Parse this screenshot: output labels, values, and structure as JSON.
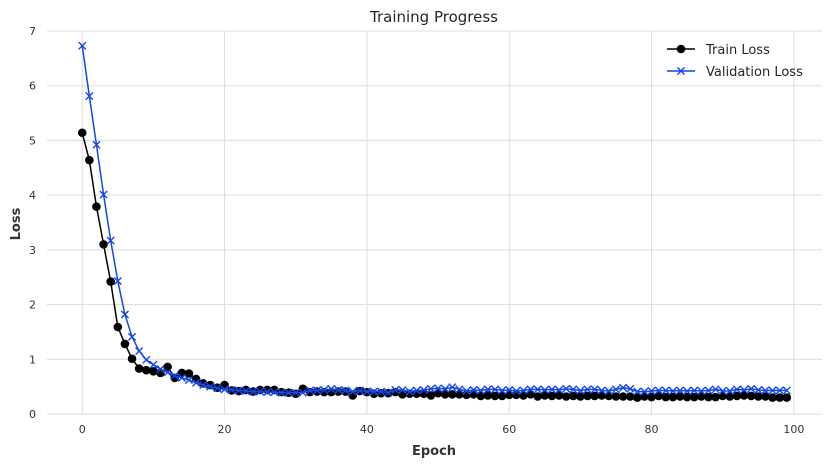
{
  "chart_data": {
    "type": "line",
    "title": "Training Progress",
    "xlabel": "Epoch",
    "ylabel": "Loss",
    "xlim": [
      -4.95,
      103.95
    ],
    "ylim": [
      0,
      7
    ],
    "xticks": [
      0,
      20,
      40,
      60,
      80,
      100
    ],
    "yticks": [
      0,
      1,
      2,
      3,
      4,
      5,
      6,
      7
    ],
    "grid": true,
    "legend_position": "top-right",
    "series": [
      {
        "name": "Train Loss",
        "color": "#000000",
        "marker": "circle",
        "x": [
          0,
          1,
          2,
          3,
          4,
          5,
          6,
          7,
          8,
          9,
          10,
          11,
          12,
          13,
          14,
          15,
          16,
          17,
          18,
          19,
          20,
          21,
          22,
          23,
          24,
          25,
          26,
          27,
          28,
          29,
          30,
          31,
          32,
          33,
          34,
          35,
          36,
          37,
          38,
          39,
          40,
          41,
          42,
          43,
          44,
          45,
          46,
          47,
          48,
          49,
          50,
          51,
          52,
          53,
          54,
          55,
          56,
          57,
          58,
          59,
          60,
          61,
          62,
          63,
          64,
          65,
          66,
          67,
          68,
          69,
          70,
          71,
          72,
          73,
          74,
          75,
          76,
          77,
          78,
          79,
          80,
          81,
          82,
          83,
          84,
          85,
          86,
          87,
          88,
          89,
          90,
          91,
          92,
          93,
          94,
          95,
          96,
          97,
          98,
          99
        ],
        "values": [
          5.14,
          4.64,
          3.79,
          3.1,
          2.42,
          1.59,
          1.28,
          1.01,
          0.83,
          0.8,
          0.78,
          0.75,
          0.86,
          0.66,
          0.75,
          0.74,
          0.64,
          0.56,
          0.53,
          0.48,
          0.53,
          0.43,
          0.42,
          0.44,
          0.41,
          0.44,
          0.44,
          0.44,
          0.4,
          0.39,
          0.37,
          0.46,
          0.4,
          0.41,
          0.4,
          0.4,
          0.41,
          0.41,
          0.34,
          0.42,
          0.4,
          0.37,
          0.38,
          0.38,
          0.4,
          0.36,
          0.37,
          0.37,
          0.37,
          0.34,
          0.38,
          0.36,
          0.36,
          0.36,
          0.35,
          0.36,
          0.33,
          0.34,
          0.33,
          0.33,
          0.35,
          0.35,
          0.34,
          0.36,
          0.32,
          0.34,
          0.33,
          0.34,
          0.32,
          0.33,
          0.32,
          0.33,
          0.33,
          0.34,
          0.33,
          0.32,
          0.32,
          0.32,
          0.3,
          0.32,
          0.31,
          0.33,
          0.31,
          0.31,
          0.32,
          0.31,
          0.31,
          0.32,
          0.31,
          0.31,
          0.33,
          0.32,
          0.33,
          0.34,
          0.33,
          0.32,
          0.32,
          0.3,
          0.3,
          0.3
        ]
      },
      {
        "name": "Validation Loss",
        "color": "#1447e6",
        "marker": "x",
        "x": [
          0,
          1,
          2,
          3,
          4,
          5,
          6,
          7,
          8,
          9,
          10,
          11,
          12,
          13,
          14,
          15,
          16,
          17,
          18,
          19,
          20,
          21,
          22,
          23,
          24,
          25,
          26,
          27,
          28,
          29,
          30,
          31,
          32,
          33,
          34,
          35,
          36,
          37,
          38,
          39,
          40,
          41,
          42,
          43,
          44,
          45,
          46,
          47,
          48,
          49,
          50,
          51,
          52,
          53,
          54,
          55,
          56,
          57,
          58,
          59,
          60,
          61,
          62,
          63,
          64,
          65,
          66,
          67,
          68,
          69,
          70,
          71,
          72,
          73,
          74,
          75,
          76,
          77,
          78,
          79,
          80,
          81,
          82,
          83,
          84,
          85,
          86,
          87,
          88,
          89,
          90,
          91,
          92,
          93,
          94,
          95,
          96,
          97,
          98,
          99
        ],
        "values": [
          6.73,
          5.81,
          4.92,
          4.01,
          3.17,
          2.43,
          1.82,
          1.41,
          1.15,
          0.99,
          0.9,
          0.82,
          0.76,
          0.7,
          0.66,
          0.62,
          0.57,
          0.53,
          0.5,
          0.47,
          0.45,
          0.44,
          0.43,
          0.42,
          0.41,
          0.41,
          0.4,
          0.4,
          0.39,
          0.39,
          0.39,
          0.39,
          0.43,
          0.43,
          0.44,
          0.46,
          0.44,
          0.43,
          0.41,
          0.43,
          0.41,
          0.41,
          0.41,
          0.39,
          0.44,
          0.44,
          0.41,
          0.43,
          0.44,
          0.46,
          0.47,
          0.46,
          0.49,
          0.45,
          0.42,
          0.44,
          0.43,
          0.45,
          0.45,
          0.43,
          0.44,
          0.42,
          0.43,
          0.45,
          0.45,
          0.44,
          0.45,
          0.44,
          0.46,
          0.45,
          0.43,
          0.45,
          0.45,
          0.43,
          0.42,
          0.45,
          0.48,
          0.46,
          0.41,
          0.41,
          0.42,
          0.43,
          0.43,
          0.42,
          0.43,
          0.42,
          0.43,
          0.42,
          0.43,
          0.45,
          0.42,
          0.42,
          0.45,
          0.44,
          0.46,
          0.44,
          0.43,
          0.43,
          0.43,
          0.43
        ]
      }
    ]
  }
}
